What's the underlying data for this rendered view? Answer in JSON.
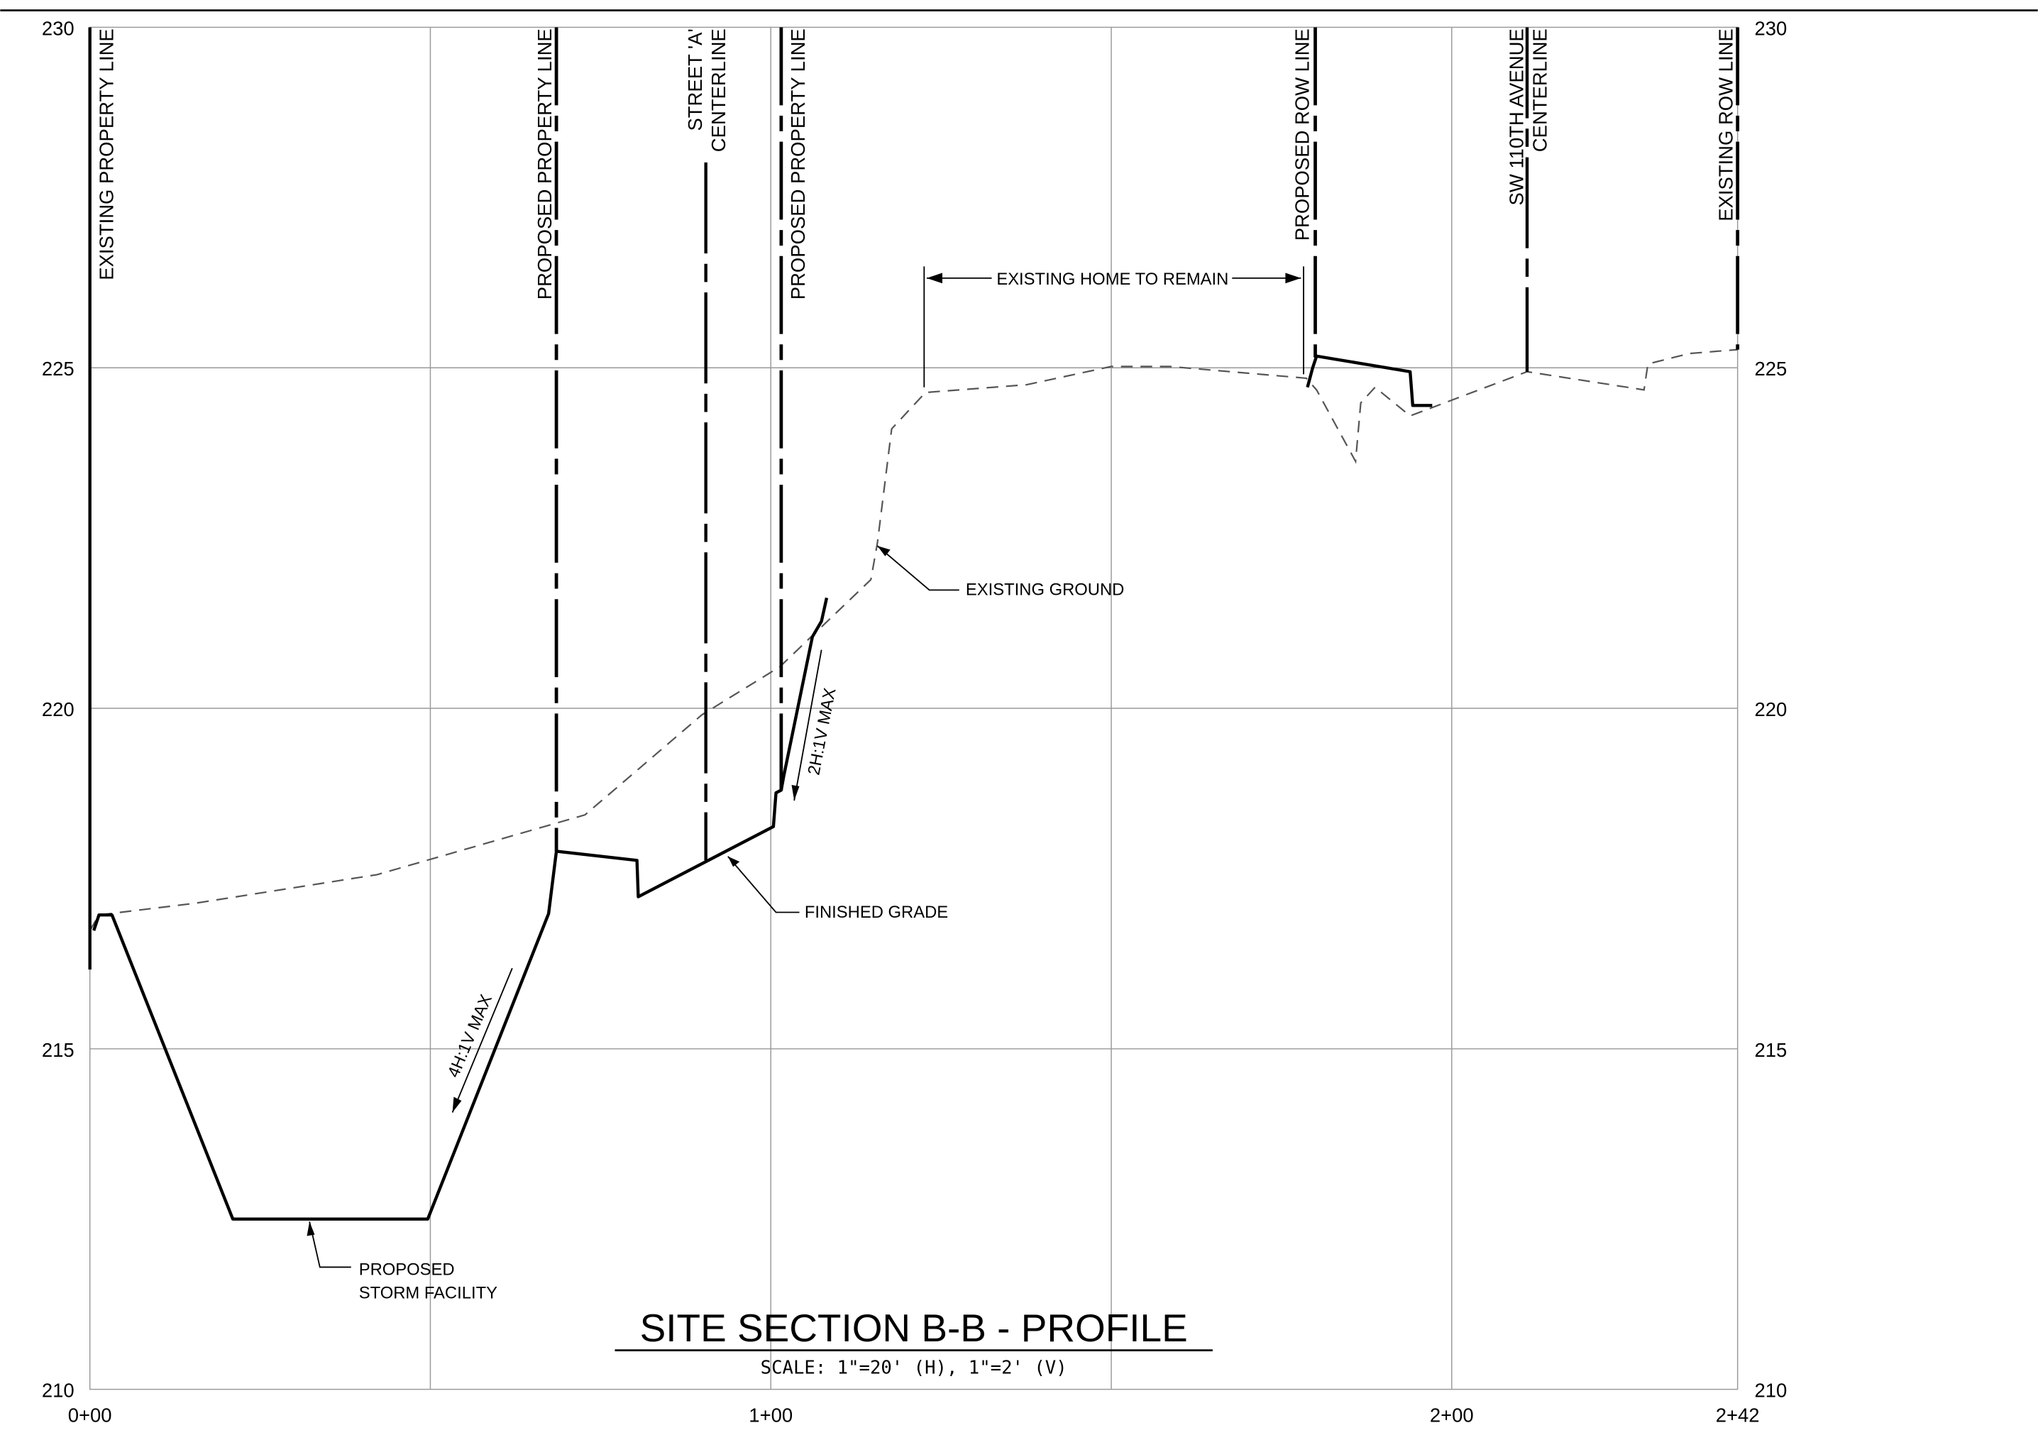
{
  "axis": {
    "elevations": [
      "230",
      "225",
      "220",
      "215",
      "210"
    ],
    "stations": [
      "0+00",
      "1+00",
      "2+00",
      "2+42"
    ]
  },
  "vertical_labels": [
    "EXISTING PROPERTY LINE",
    "PROPOSED PROPERTY LINE",
    "STREET 'A'",
    "CENTERLINE",
    "PROPOSED PROPERTY LINE",
    "PROPOSED ROW LINE",
    "SW 110TH AVENUE",
    "CENTERLINE",
    "EXISTING ROW LINE"
  ],
  "annotations": {
    "home": "EXISTING HOME TO REMAIN",
    "ground": "EXISTING GROUND",
    "grade": "FINISHED GRADE",
    "storm_1": "PROPOSED",
    "storm_2": "STORM FACILITY",
    "slope_4": "4H:1V MAX",
    "slope_2": "2H:1V MAX"
  },
  "title": "SITE SECTION B-B - PROFILE",
  "scale": "SCALE:  1\"=20' (H),  1\"=2' (V)"
}
